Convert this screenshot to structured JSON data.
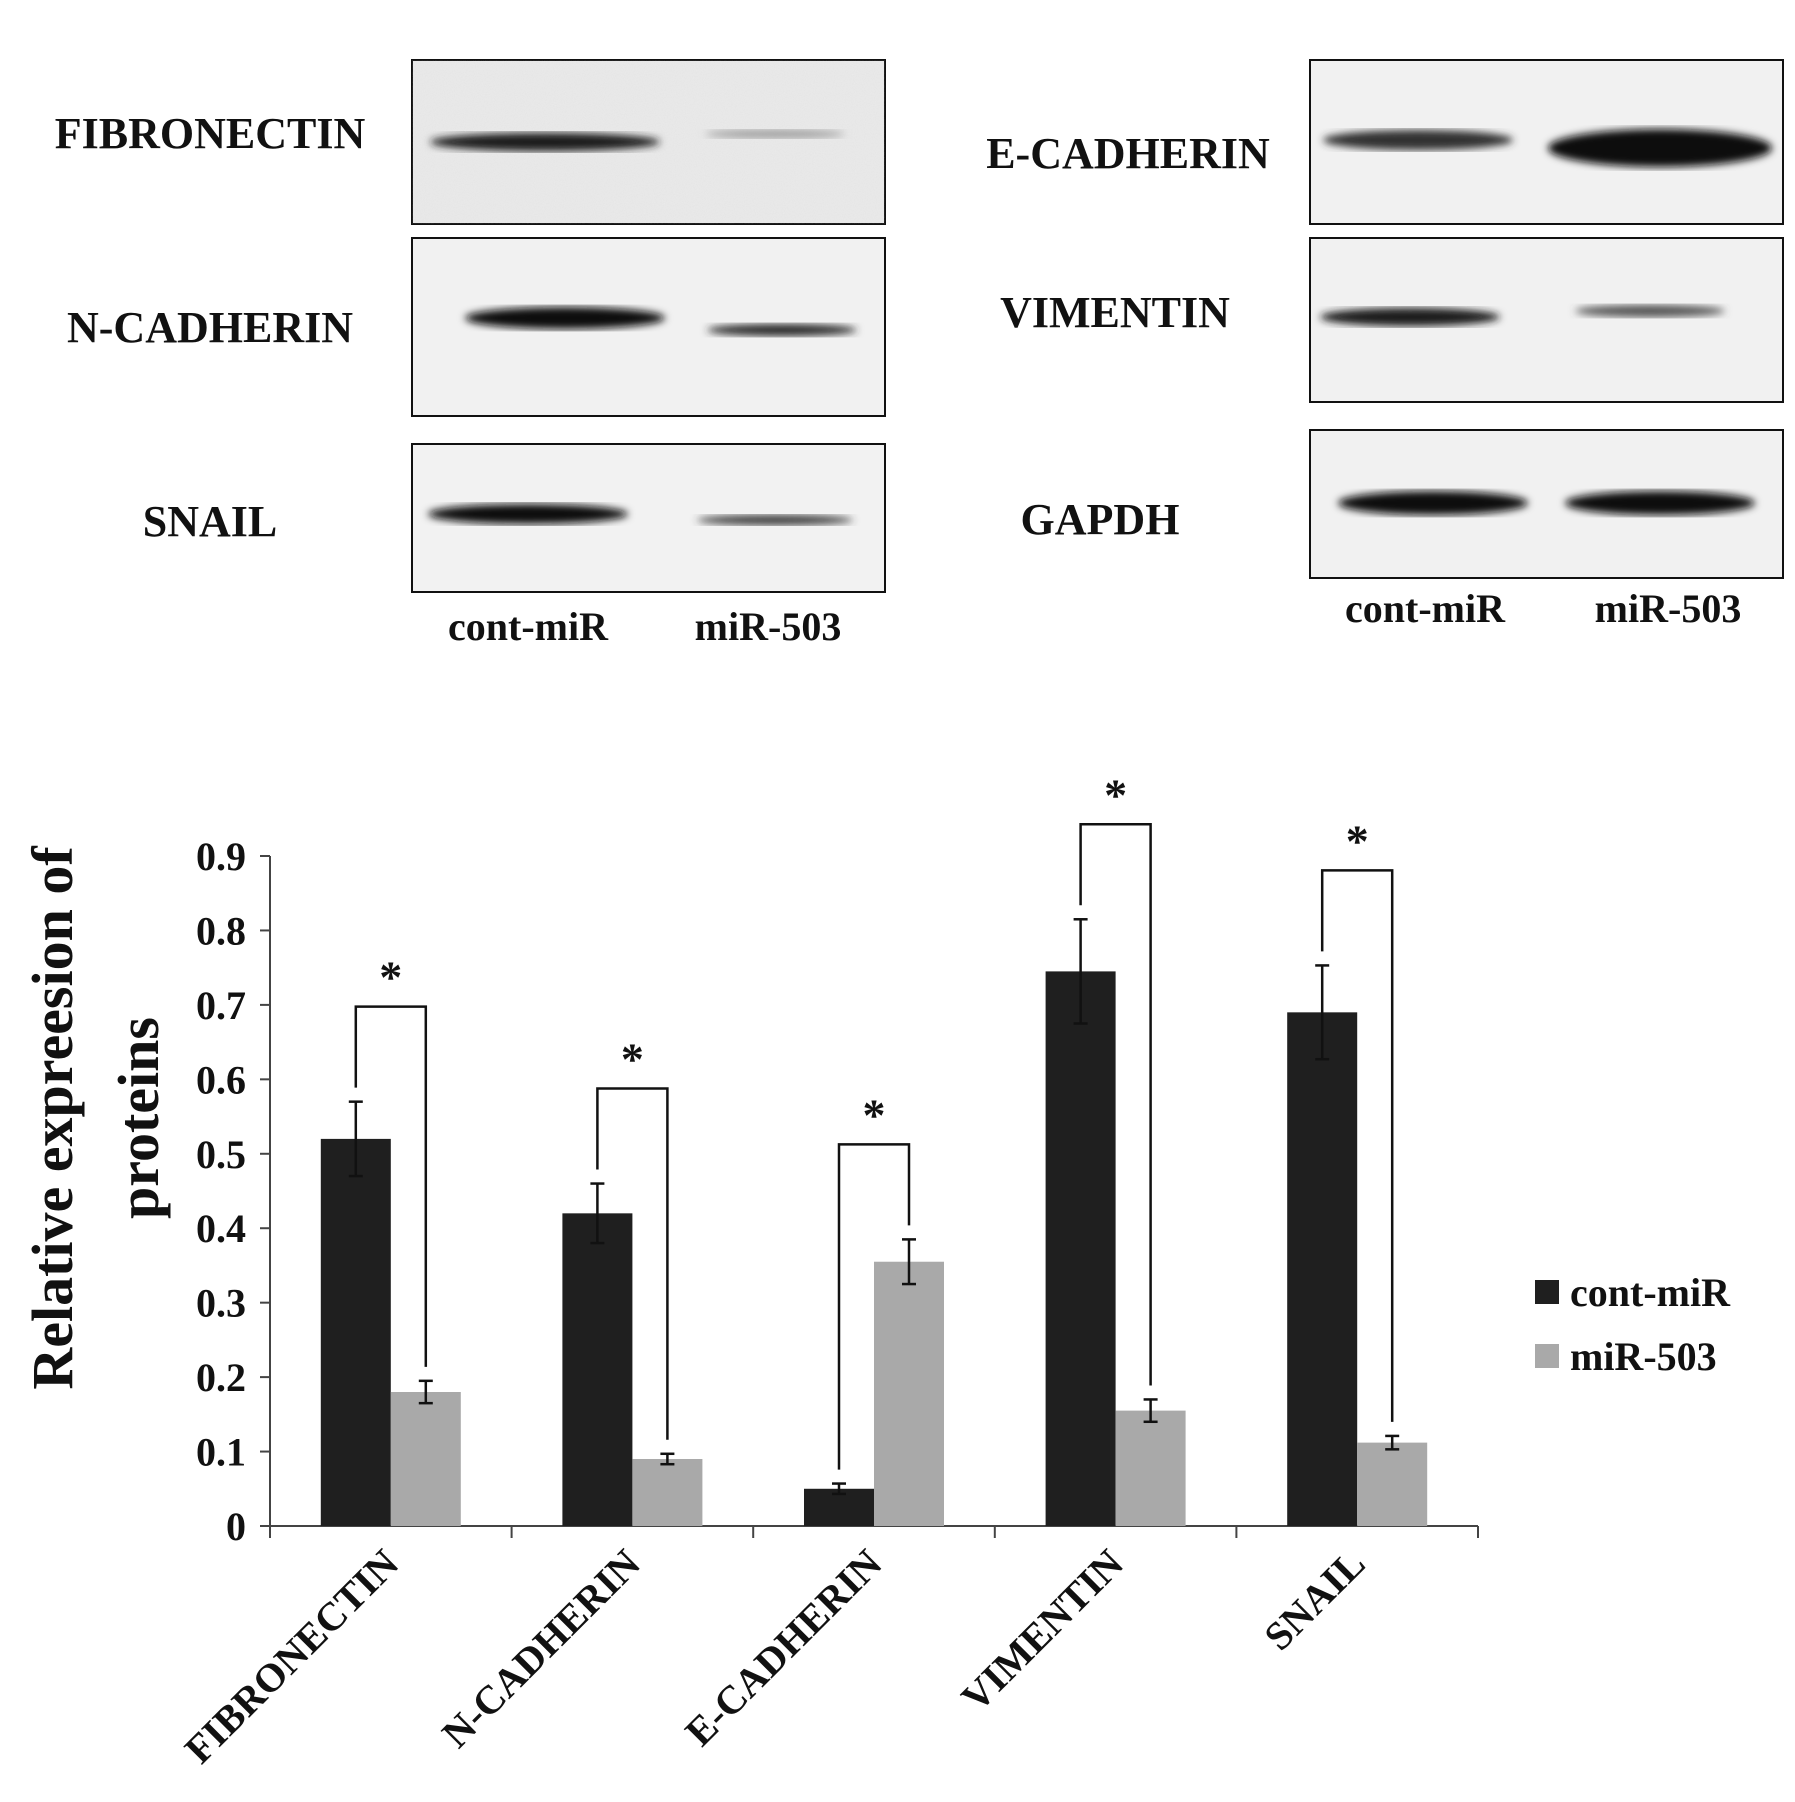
{
  "blots": {
    "left": {
      "proteins": [
        "FIBRONECTIN",
        "N-CADHERIN",
        "SNAIL"
      ],
      "lanes": [
        "cont-miR",
        "miR-503"
      ]
    },
    "right": {
      "proteins": [
        "E-CADHERIN",
        "VIMENTIN",
        "GAPDH"
      ],
      "lanes": [
        "cont-miR",
        "miR-503"
      ]
    }
  },
  "chart_data": {
    "type": "bar",
    "categories": [
      "FIBRONECTIN",
      "N-CADHERIN",
      "E-CADHERIN",
      "VIMENTIN",
      "SNAIL"
    ],
    "series": [
      {
        "name": "cont-miR",
        "values": [
          0.52,
          0.42,
          0.05,
          0.745,
          0.69
        ],
        "errors": [
          0.05,
          0.04,
          0.007,
          0.07,
          0.063
        ],
        "color": "#1f1f1f"
      },
      {
        "name": "miR-503",
        "values": [
          0.18,
          0.09,
          0.355,
          0.155,
          0.112
        ],
        "errors": [
          0.015,
          0.007,
          0.03,
          0.015,
          0.009
        ],
        "color": "#a9a9a9"
      }
    ],
    "significance": [
      "*",
      "*",
      "*",
      "*",
      "*"
    ],
    "ylabel": "Relative expreesion of proteins",
    "ylabel_lines": [
      "Relative expreesion of",
      "proteins"
    ],
    "yticks": [
      "0",
      "0.1",
      "0.2",
      "0.3",
      "0.4",
      "0.5",
      "0.6",
      "0.7",
      "0.8",
      "0.9"
    ],
    "ylim": [
      0,
      0.9
    ],
    "legend_position": "right",
    "grid": false
  }
}
